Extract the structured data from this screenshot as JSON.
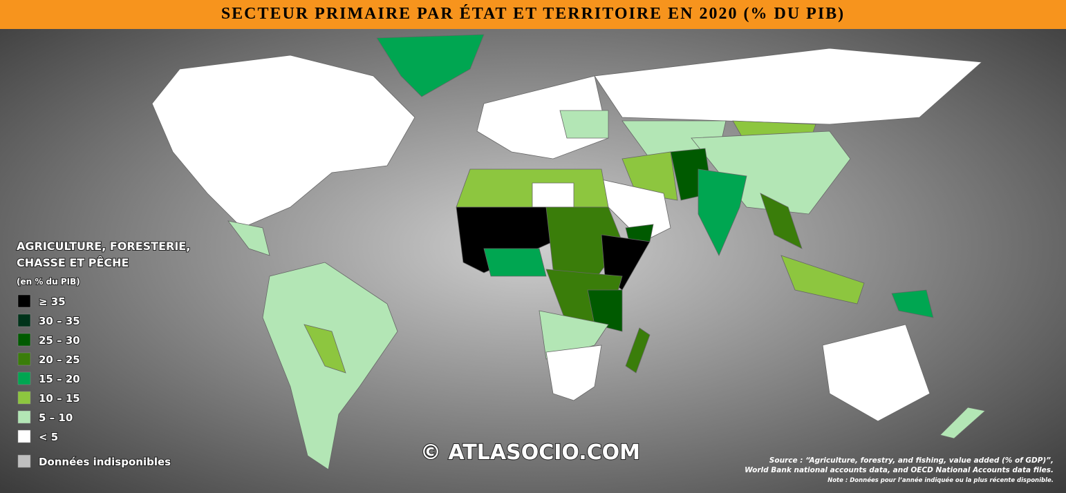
{
  "title": "SECTEUR PRIMAIRE PAR ÉTAT ET TERRITOIRE EN 2020 (% DU PIB)",
  "legend": {
    "title": [
      "AGRICULTURE, FORESTERIE,",
      "CHASSE ET PÊCHE"
    ],
    "subtitle": "(en % du PIB)",
    "items": [
      {
        "label": "≥ 35",
        "color": "#000000"
      },
      {
        "label": "30 – 35",
        "color": "#00331a"
      },
      {
        "label": "25 – 30",
        "color": "#005a00"
      },
      {
        "label": "20 – 25",
        "color": "#3a7d0a"
      },
      {
        "label": "15 – 20",
        "color": "#00a651"
      },
      {
        "label": "10 – 15",
        "color": "#8dc63f"
      },
      {
        "label": "5 – 10",
        "color": "#b3e6b5"
      },
      {
        "label": "< 5",
        "color": "#ffffff"
      },
      {
        "label": "Données indisponibles",
        "color": "#c0c0c0"
      }
    ]
  },
  "watermark": "© ATLASOCIO.COM",
  "source": [
    "Source : “Agriculture, forestry, and fishing, value added (% of GDP)”,",
    "World Bank national accounts data, and OECD National Accounts data files."
  ],
  "note": "Note : Données pour l’année indiquée ou la plus récente disponible."
}
